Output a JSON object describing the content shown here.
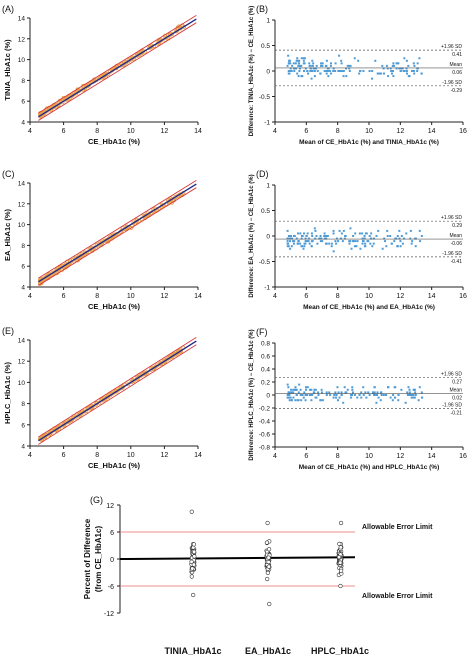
{
  "chart_data": [
    {
      "panel": "(A)",
      "type": "scatter",
      "xlabel": "CE_HbA1c (%)",
      "ylabel": "TINIA_HbA1c (%)",
      "xlim": [
        4,
        14
      ],
      "ylim": [
        4,
        14
      ],
      "xticks": [
        "4",
        "6",
        "8",
        "10",
        "12",
        "14"
      ],
      "yticks": [
        "4",
        "6",
        "8",
        "10",
        "12",
        "14"
      ],
      "n_points": 200,
      "slope": 1.0,
      "intercept": 0.08,
      "spread": 0.2
    },
    {
      "panel": "(B)",
      "type": "scatter",
      "xlabel": "Mean of CE_HbA1c (%) and TINIA_HbA1c (%)",
      "ylabel": "Difference: TINIA_HbA1c (%) − CE_HbA1c (%)",
      "xlim": [
        4,
        16
      ],
      "ylim": [
        -1,
        1
      ],
      "xticks": [
        "4",
        "6",
        "8",
        "10",
        "12",
        "14",
        "16"
      ],
      "yticks": [
        "-1",
        "-0.5",
        "0",
        "0.5",
        "1"
      ],
      "lines": [
        {
          "label": "+1.96 SD",
          "value_label": "0.41",
          "y": 0.41
        },
        {
          "label": "Mean",
          "value_label": "0.06",
          "y": 0.06
        },
        {
          "label": "-1.96 SD",
          "value_label": "-0.29",
          "y": -0.29
        }
      ]
    },
    {
      "panel": "(C)",
      "type": "scatter",
      "xlabel": "CE_HbA1c (%)",
      "ylabel": "EA_HbA1c (%)",
      "xlim": [
        4,
        14
      ],
      "ylim": [
        4,
        14
      ],
      "xticks": [
        "4",
        "6",
        "8",
        "10",
        "12",
        "14"
      ],
      "yticks": [
        "4",
        "6",
        "8",
        "10",
        "12",
        "14"
      ],
      "n_points": 200,
      "slope": 1.0,
      "intercept": -0.06,
      "spread": 0.22
    },
    {
      "panel": "(D)",
      "type": "scatter",
      "xlabel": "Mean of CE_HbA1c (%) and EA_HbA1c (%)",
      "ylabel": "Difference: EA_HbA1c (%) − CE_HbA1c (%)",
      "xlim": [
        4,
        16
      ],
      "ylim": [
        -1,
        1
      ],
      "xticks": [
        "4",
        "6",
        "8",
        "10",
        "12",
        "14",
        "16"
      ],
      "yticks": [
        "-1",
        "-0.5",
        "0",
        "0.5",
        "1"
      ],
      "lines": [
        {
          "label": "+1.96 SD",
          "value_label": "0.29",
          "y": 0.29
        },
        {
          "label": "Mean",
          "value_label": "-0.06",
          "y": -0.06
        },
        {
          "label": "-1.96 SD",
          "value_label": "-0.41",
          "y": -0.41
        }
      ]
    },
    {
      "panel": "(E)",
      "type": "scatter",
      "xlabel": "CE_HbA1c (%)",
      "ylabel": "HPLC_HbA1c (%)",
      "xlim": [
        4,
        14
      ],
      "ylim": [
        4,
        14
      ],
      "xticks": [
        "4",
        "6",
        "8",
        "10",
        "12",
        "14"
      ],
      "yticks": [
        "4",
        "6",
        "8",
        "10",
        "12",
        "14"
      ],
      "n_points": 200,
      "slope": 1.0,
      "intercept": 0.02,
      "spread": 0.15
    },
    {
      "panel": "(F)",
      "type": "scatter",
      "xlabel": "Mean of CE_HbA1c (%) and HPLC_HbA1c (%)",
      "ylabel": "Difference: HPLC_HbA1c (%) − CE_HbA1c (%)",
      "xlim": [
        4,
        16
      ],
      "ylim": [
        -0.8,
        0.8
      ],
      "xticks": [
        "4",
        "6",
        "8",
        "10",
        "12",
        "14",
        "16"
      ],
      "yticks": [
        "-0.8",
        "-0.6",
        "-0.4",
        "-0.2",
        "0",
        "0.2",
        "0.4",
        "0.6",
        "0.8"
      ],
      "lines": [
        {
          "label": "+1.96 SD",
          "value_label": "0.27",
          "y": 0.27
        },
        {
          "label": "Mean",
          "value_label": "0.02",
          "y": 0.02
        },
        {
          "label": "-1.96 SD",
          "value_label": "-0.21",
          "y": -0.21
        }
      ]
    },
    {
      "panel": "(G)",
      "type": "scatter",
      "ylabel_lines": [
        "Percent of Difference",
        "(from CE_HbA1c)"
      ],
      "categories": [
        "TINIA_HbA1c",
        "EA_HbA1c",
        "HPLC_HbA1c"
      ],
      "ylim": [
        -12,
        12
      ],
      "yticks": [
        "-12",
        "-6",
        "0",
        "6",
        "12"
      ],
      "limit_lines": [
        {
          "label": "Allowable Error Limit",
          "y": 6
        },
        {
          "label": "Allowable Error Limit",
          "y": -6
        }
      ],
      "ranges": [
        [
          -8,
          10.5
        ],
        [
          -10,
          8
        ],
        [
          -6,
          8
        ]
      ]
    }
  ],
  "colors": {
    "scatter_point": "#e8a04c",
    "identity_line": "#1f2a8c",
    "limit_line": "#d93a3a",
    "ba_point": "#4f9bd6",
    "axis": "#222222",
    "error_limit": "#e86a6a"
  }
}
